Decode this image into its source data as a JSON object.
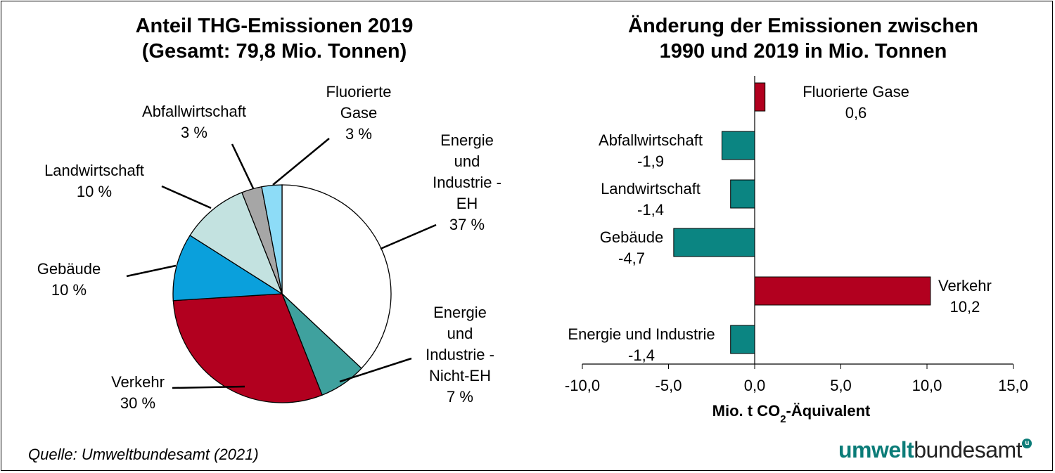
{
  "source": "Quelle: Umweltbundesamt (2021)",
  "logo": {
    "part1": "umwelt",
    "part2": "bundesamt",
    "mark": "u"
  },
  "chart_data": [
    {
      "type": "pie",
      "title": [
        "Anteil THG-Emissionen 2019",
        "(Gesamt: 79,8 Mio. Tonnen)"
      ],
      "slices": [
        {
          "label": [
            "Energie",
            "und",
            "Industrie -",
            "EH"
          ],
          "value": 37,
          "value_label": "37 %",
          "color": "#ffffff"
        },
        {
          "label": [
            "Energie",
            "und",
            "Industrie -",
            "Nicht-EH"
          ],
          "value": 7,
          "value_label": "7 %",
          "color": "#3fa19e"
        },
        {
          "label": [
            "Verkehr"
          ],
          "value": 30,
          "value_label": "30 %",
          "color": "#b2001f"
        },
        {
          "label": [
            "Gebäude"
          ],
          "value": 10,
          "value_label": "10 %",
          "color": "#0aa0dc"
        },
        {
          "label": [
            "Landwirtschaft"
          ],
          "value": 10,
          "value_label": "10 %",
          "color": "#c3e2e0"
        },
        {
          "label": [
            "Abfallwirtschaft"
          ],
          "value": 3,
          "value_label": "3 %",
          "color": "#a6a6a6"
        },
        {
          "label": [
            "Fluorierte",
            "Gase"
          ],
          "value": 3,
          "value_label": "3 %",
          "color": "#8ddcf7"
        }
      ]
    },
    {
      "type": "bar",
      "orientation": "horizontal",
      "title": [
        "Änderung der Emissionen zwischen",
        "1990 und 2019 in Mio. Tonnen"
      ],
      "categories": [
        "Fluorierte Gase",
        "Abfallwirtschaft",
        "Landwirtschaft",
        "Gebäude",
        "Verkehr",
        "Energie und Industrie"
      ],
      "values": [
        0.6,
        -1.9,
        -1.4,
        -4.7,
        10.2,
        -1.4
      ],
      "value_labels": [
        "0,6",
        "-1,9",
        "-1,4",
        "-4,7",
        "10,2",
        "-1,4"
      ],
      "colors": {
        "positive": "#b2001f",
        "negative": "#0b8582"
      },
      "xlim": [
        -10,
        15
      ],
      "xticks": [
        -10,
        -5,
        0,
        5,
        10,
        15
      ],
      "xtick_labels": [
        "-10,0",
        "-5,0",
        "0,0",
        "5,0",
        "10,0",
        "15,0"
      ],
      "xlabel": {
        "main": "Mio. t CO",
        "sub": "2",
        "rest": "-Äquivalent"
      },
      "grid": false
    }
  ]
}
